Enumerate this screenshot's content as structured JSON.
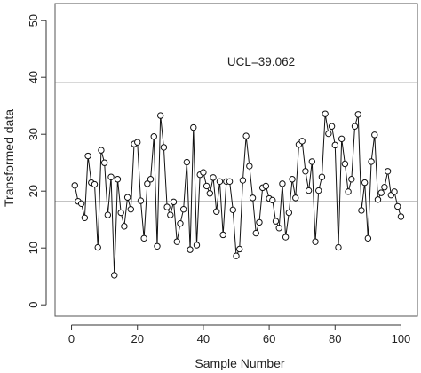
{
  "chart_data": {
    "type": "line",
    "title": "",
    "xlabel": "Sample Number",
    "ylabel": "Transformed data",
    "xlim": [
      -5,
      105
    ],
    "ylim": [
      -2,
      53
    ],
    "x_ticks": [
      0,
      20,
      40,
      60,
      80,
      100
    ],
    "y_ticks": [
      0,
      10,
      20,
      30,
      40,
      50
    ],
    "grid": false,
    "legend": "none",
    "center_line": 18.1,
    "ucl": 39.062,
    "ucl_label": "UCL=39.062",
    "line_color": "#111111",
    "marker": "open-circle",
    "series": [
      {
        "x": [
          1,
          2,
          3,
          4,
          5,
          6,
          7,
          8,
          9,
          10,
          11,
          12,
          13,
          14,
          15,
          16,
          17,
          18,
          19,
          20,
          21,
          22,
          23,
          24,
          25,
          26,
          27,
          28,
          29,
          30,
          31,
          32,
          33,
          34,
          35,
          36,
          37,
          38,
          39,
          40,
          41,
          42,
          43,
          44,
          45,
          46,
          47,
          48,
          49,
          50,
          51,
          52,
          53,
          54,
          55,
          56,
          57,
          58,
          59,
          60,
          61,
          62,
          63,
          64,
          65,
          66,
          67,
          68,
          69,
          70,
          71,
          72,
          73,
          74,
          75,
          76,
          77,
          78,
          79,
          80,
          81,
          82,
          83,
          84,
          85,
          86,
          87,
          88,
          89,
          90,
          91,
          92,
          93,
          94,
          95,
          96,
          97,
          98,
          99,
          100
        ],
        "y": [
          21,
          18.2,
          17.8,
          15.3,
          26.2,
          21.5,
          21.2,
          10.1,
          27.2,
          25,
          15.8,
          22.5,
          5.2,
          22.1,
          16.2,
          13.8,
          18.9,
          16.8,
          28.3,
          28.6,
          18.3,
          11.7,
          21.3,
          22.1,
          29.6,
          10.3,
          33.3,
          27.7,
          17.2,
          15.8,
          18.1,
          11.1,
          14.3,
          16.8,
          25.1,
          9.7,
          31.2,
          10.5,
          22.9,
          23.3,
          20.9,
          19.6,
          22.4,
          16.4,
          21.7,
          12.3,
          21.7,
          21.7,
          16.7,
          8.6,
          9.8,
          21.9,
          29.7,
          24.4,
          18.8,
          12.6,
          14.5,
          20.6,
          20.9,
          18.7,
          18.4,
          14.7,
          13.5,
          21.3,
          11.9,
          16.2,
          22.1,
          18.8,
          28.2,
          28.8,
          23.5,
          20.1,
          25.2,
          11.1,
          20.1,
          22.5,
          33.6,
          30.1,
          31.4,
          28.1,
          10.1,
          29.2,
          24.8,
          19.9,
          22.1,
          31.4,
          33.5,
          16.6,
          21.5,
          11.7,
          25.2,
          29.9,
          18.5,
          19.7,
          20.7,
          23.5,
          19.3,
          19.9,
          17.3,
          15.5
        ]
      }
    ]
  }
}
